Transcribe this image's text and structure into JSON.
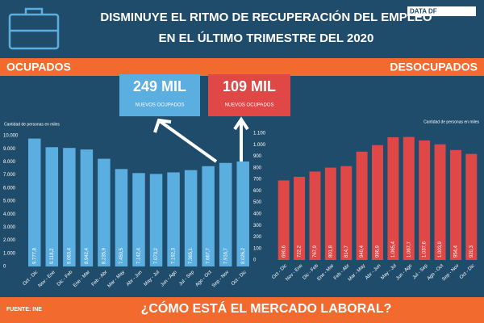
{
  "header": {
    "title_line1": "DISMINUYE EL RITMO DE RECUPERACIÓN DEL EMPLEO",
    "title_line2": "EN EL ÚLTIMO TRIMESTRE DEL 2020",
    "logo": "DATA DF"
  },
  "callouts": [
    {
      "value": "249 MIL",
      "label": "NUEVOS OCUPADOS"
    },
    {
      "value": "109 MIL",
      "label": "NUEVOS OCUPADOS"
    }
  ],
  "footer": {
    "source": "FUENTE: INE",
    "question": "¿CÓMO ESTÁ EL MERCADO LABORAL?"
  },
  "chart_data": [
    {
      "type": "bar",
      "title": "OCUPADOS",
      "ylabel": "Cantidad de personas en miles",
      "color": "#5aaee0",
      "categories": [
        "Oct - Dic",
        "Nov - Ene",
        "Dic - Feb",
        "Ene - Mar",
        "Feb - Abr",
        "Mar - May",
        "Abr - Jun",
        "May - Jul",
        "Jun - Ago",
        "Jul - Sep",
        "Ago - Oct",
        "Sep - Nov",
        "Oct - Dic"
      ],
      "values": [
        9777.8,
        9118.2,
        9063.4,
        8942.4,
        8235.9,
        7450.5,
        7142.4,
        7073.2,
        7192.3,
        7365.1,
        7667.7,
        7916.7,
        8026.2
      ],
      "value_labels": [
        "9.777,8",
        "9.118,2",
        "9.063,4",
        "8.942,4",
        "8.235,9",
        "7.450,5",
        "7.142,4",
        "7.073,2",
        "7.192,3",
        "7.365,1",
        "7.667,7",
        "7.916,7",
        "8.026,2"
      ],
      "ylim": [
        0,
        10000
      ],
      "yticks": [
        0,
        {
          "value": 1000,
          "label": "1.000"
        },
        {
          "value": 2000,
          "label": "2.000"
        },
        {
          "value": 3000,
          "label": "3.000"
        },
        {
          "value": 4000,
          "label": "4.000"
        },
        {
          "value": 5000,
          "label": "5.000"
        },
        {
          "value": 6000,
          "label": "6.000"
        },
        {
          "value": 7000,
          "label": "7.000"
        },
        {
          "value": 8000,
          "label": "8.000"
        },
        {
          "value": 9000,
          "label": "9.000"
        },
        {
          "value": 10000,
          "label": "10.000"
        }
      ]
    },
    {
      "type": "bar",
      "title": "DESOCUPADOS",
      "ylabel": "Cantidad de personas en miles",
      "color": "#e04848",
      "categories": [
        "Oct - Dic",
        "Nov - Ene",
        "Dic - Feb",
        "Ene - Mar",
        "Feb - Abr",
        "Mar - May",
        "Abr - Jun",
        "May - Jul",
        "Jun - Ago",
        "Jul - Sep",
        "Ago - Oct",
        "Sep - Nov",
        "Oct - Dic"
      ],
      "values": [
        690.6,
        722.2,
        767.9,
        801.8,
        814.7,
        940.4,
        996.9,
        1065.4,
        1067.7,
        1037.6,
        1003.9,
        954.4,
        920.3
      ],
      "value_labels": [
        "690,6",
        "722,2",
        "767,9",
        "801,8",
        "814,7",
        "940,4",
        "996,9",
        "1.065,4",
        "1.067,7",
        "1.037,6",
        "1.003,9",
        "954,4",
        "920,3"
      ],
      "ylim": [
        0,
        1100
      ],
      "yticks": [
        0,
        100,
        200,
        300,
        400,
        500,
        600,
        700,
        800,
        900,
        {
          "value": 1000,
          "label": "1.000"
        },
        {
          "value": 1100,
          "label": "1.100"
        }
      ]
    }
  ]
}
